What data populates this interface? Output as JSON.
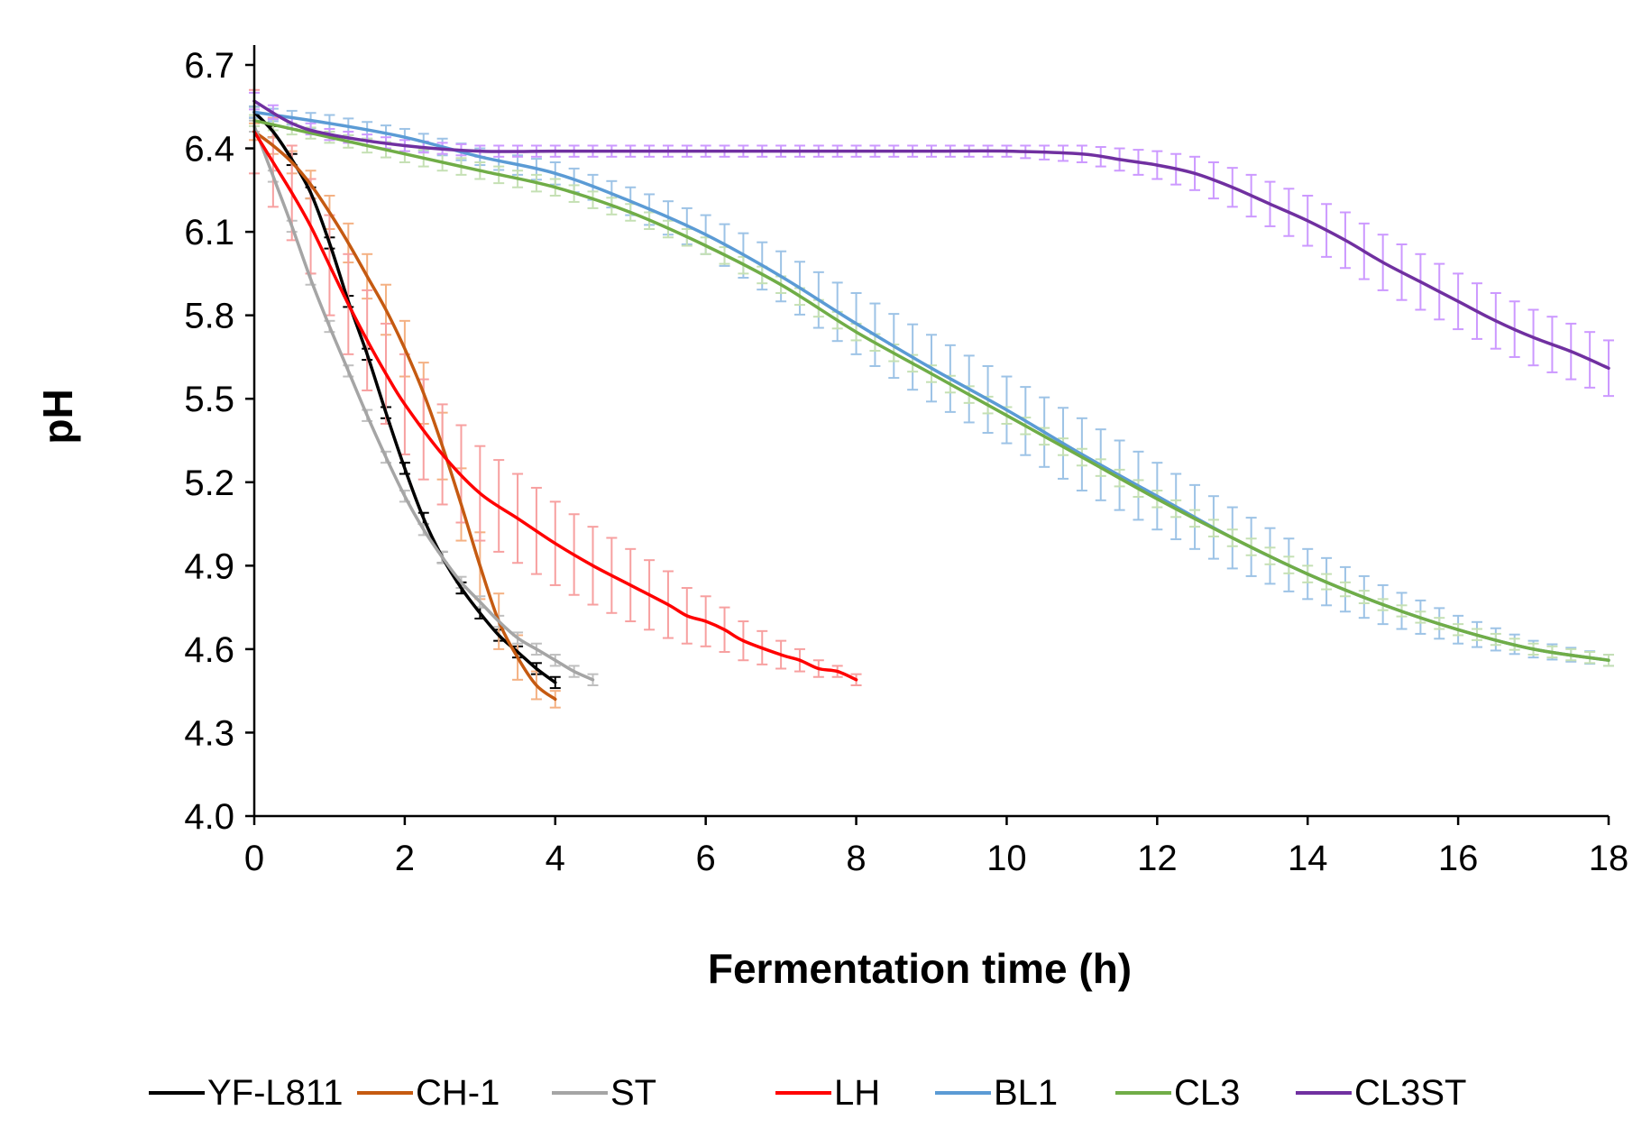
{
  "chart_data": {
    "type": "line",
    "title": "",
    "xlabel": "Fermentation time (h)",
    "ylabel": "pH",
    "xlim": [
      0,
      18
    ],
    "ylim": [
      4.0,
      6.7
    ],
    "xticks": [
      0,
      2,
      4,
      6,
      8,
      10,
      12,
      14,
      16,
      18
    ],
    "yticks": [
      4.0,
      4.3,
      4.6,
      4.9,
      5.2,
      5.5,
      5.8,
      6.1,
      6.4,
      6.7
    ],
    "xtick_labels": [
      "0",
      "2",
      "4",
      "6",
      "8",
      "10",
      "12",
      "14",
      "16",
      "18"
    ],
    "ytick_labels": [
      "4.0",
      "4.3",
      "4.6",
      "4.9",
      "5.2",
      "5.5",
      "5.8",
      "6.1",
      "6.4",
      "6.7"
    ],
    "grid": false,
    "legend_position": "bottom",
    "series": [
      {
        "name": "YF-L811",
        "color": "#000000",
        "error_color": "#000000",
        "error_step": 0,
        "x": [
          0,
          0.25,
          0.5,
          0.75,
          1.0,
          1.25,
          1.5,
          1.75,
          2.0,
          2.25,
          2.5,
          2.75,
          3.0,
          3.25,
          3.5,
          3.75,
          4.0
        ],
        "y": [
          6.53,
          6.46,
          6.36,
          6.24,
          6.06,
          5.85,
          5.66,
          5.45,
          5.25,
          5.07,
          4.93,
          4.82,
          4.73,
          4.65,
          4.59,
          4.53,
          4.48
        ],
        "err": [
          0.02,
          0.02,
          0.02,
          0.02,
          0.02,
          0.02,
          0.02,
          0.02,
          0.02,
          0.02,
          0.02,
          0.02,
          0.02,
          0.02,
          0.02,
          0.02,
          0.02
        ]
      },
      {
        "name": "CH-1",
        "color": "#C55A11",
        "error_color": "#F4B183",
        "error_step": 2,
        "x": [
          0,
          0.25,
          0.5,
          0.75,
          1.0,
          1.25,
          1.5,
          1.75,
          2.0,
          2.25,
          2.5,
          2.75,
          3.0,
          3.25,
          3.5,
          3.75,
          4.0
        ],
        "y": [
          6.46,
          6.41,
          6.35,
          6.27,
          6.17,
          6.06,
          5.94,
          5.82,
          5.68,
          5.52,
          5.33,
          5.12,
          4.9,
          4.7,
          4.57,
          4.47,
          4.42
        ],
        "err": [
          0.03,
          0.03,
          0.04,
          0.05,
          0.06,
          0.07,
          0.08,
          0.09,
          0.1,
          0.11,
          0.12,
          0.13,
          0.12,
          0.1,
          0.08,
          0.05,
          0.03
        ]
      },
      {
        "name": "ST",
        "color": "#A5A5A5",
        "error_color": "#BFBFBF",
        "error_step": 1,
        "x": [
          0,
          0.25,
          0.5,
          0.75,
          1.0,
          1.25,
          1.5,
          1.75,
          2.0,
          2.25,
          2.5,
          2.75,
          3.0,
          3.25,
          3.5,
          3.75,
          4.0,
          4.25,
          4.5
        ],
        "y": [
          6.48,
          6.3,
          6.12,
          5.93,
          5.76,
          5.6,
          5.44,
          5.29,
          5.15,
          5.03,
          4.93,
          4.84,
          4.77,
          4.7,
          4.64,
          4.6,
          4.56,
          4.52,
          4.49
        ],
        "err": [
          0.02,
          0.02,
          0.02,
          0.02,
          0.02,
          0.02,
          0.02,
          0.02,
          0.02,
          0.02,
          0.02,
          0.02,
          0.02,
          0.02,
          0.02,
          0.02,
          0.02,
          0.02,
          0.02
        ]
      },
      {
        "name": "LH",
        "color": "#FF0000",
        "error_color": "#F7A0A0",
        "error_step": 2,
        "x": [
          0,
          0.25,
          0.5,
          0.75,
          1.0,
          1.25,
          1.5,
          1.75,
          2.0,
          2.5,
          3.0,
          3.5,
          4.0,
          4.5,
          5.0,
          5.5,
          5.75,
          6.0,
          6.25,
          6.5,
          7.0,
          7.25,
          7.5,
          7.75,
          8.0
        ],
        "y": [
          6.46,
          6.35,
          6.24,
          6.12,
          5.98,
          5.84,
          5.71,
          5.59,
          5.48,
          5.3,
          5.16,
          5.07,
          4.98,
          4.9,
          4.83,
          4.76,
          4.72,
          4.7,
          4.67,
          4.63,
          4.58,
          4.56,
          4.53,
          4.52,
          4.49
        ],
        "err": [
          0.15,
          0.16,
          0.17,
          0.17,
          0.18,
          0.18,
          0.18,
          0.18,
          0.18,
          0.18,
          0.17,
          0.16,
          0.15,
          0.14,
          0.13,
          0.12,
          0.1,
          0.09,
          0.08,
          0.07,
          0.05,
          0.04,
          0.03,
          0.02,
          0.02
        ]
      },
      {
        "name": "BL1",
        "color": "#5B9BD5",
        "error_color": "#9DC3E6",
        "error_step": 1,
        "x": [
          0,
          1,
          2,
          3,
          4,
          5,
          6,
          7,
          8,
          9,
          10,
          11,
          12,
          13,
          14,
          15,
          16,
          17,
          18
        ],
        "y": [
          6.53,
          6.49,
          6.44,
          6.37,
          6.31,
          6.21,
          6.09,
          5.94,
          5.77,
          5.61,
          5.46,
          5.3,
          5.15,
          5.0,
          4.87,
          4.76,
          4.67,
          4.6,
          4.56
        ],
        "err": [
          0.02,
          0.03,
          0.03,
          0.03,
          0.04,
          0.05,
          0.07,
          0.09,
          0.11,
          0.12,
          0.12,
          0.13,
          0.12,
          0.11,
          0.09,
          0.07,
          0.05,
          0.03,
          0.02
        ]
      },
      {
        "name": "CL3",
        "color": "#70AD47",
        "error_color": "#C5E0B4",
        "error_step": 1,
        "x": [
          0,
          1,
          2,
          3,
          4,
          5,
          6,
          7,
          8,
          9,
          10,
          11,
          12,
          13,
          14,
          15,
          16,
          17,
          18
        ],
        "y": [
          6.5,
          6.44,
          6.38,
          6.32,
          6.26,
          6.17,
          6.05,
          5.91,
          5.74,
          5.59,
          5.44,
          5.29,
          5.14,
          5.0,
          4.87,
          4.76,
          4.67,
          4.6,
          4.56
        ],
        "err": [
          0.02,
          0.02,
          0.03,
          0.03,
          0.03,
          0.03,
          0.03,
          0.03,
          0.03,
          0.03,
          0.03,
          0.03,
          0.03,
          0.03,
          0.03,
          0.02,
          0.02,
          0.02,
          0.02
        ]
      },
      {
        "name": "CL3ST",
        "color": "#7030A0",
        "error_color": "#CC99FF",
        "error_step": 1,
        "x": [
          0,
          0.5,
          1,
          2,
          3,
          4,
          5,
          6,
          7,
          8,
          9,
          10,
          11,
          11.5,
          12,
          12.5,
          13,
          13.5,
          14,
          14.5,
          15,
          15.5,
          16,
          16.5,
          17,
          17.5,
          18
        ],
        "y": [
          6.57,
          6.49,
          6.45,
          6.41,
          6.39,
          6.39,
          6.39,
          6.39,
          6.39,
          6.39,
          6.39,
          6.39,
          6.38,
          6.36,
          6.34,
          6.31,
          6.26,
          6.2,
          6.14,
          6.07,
          5.99,
          5.92,
          5.85,
          5.78,
          5.72,
          5.67,
          5.61
        ],
        "err": [
          0.03,
          0.02,
          0.02,
          0.02,
          0.02,
          0.02,
          0.02,
          0.02,
          0.02,
          0.02,
          0.02,
          0.02,
          0.03,
          0.04,
          0.05,
          0.06,
          0.07,
          0.08,
          0.09,
          0.1,
          0.1,
          0.1,
          0.1,
          0.1,
          0.1,
          0.1,
          0.1
        ]
      }
    ]
  }
}
